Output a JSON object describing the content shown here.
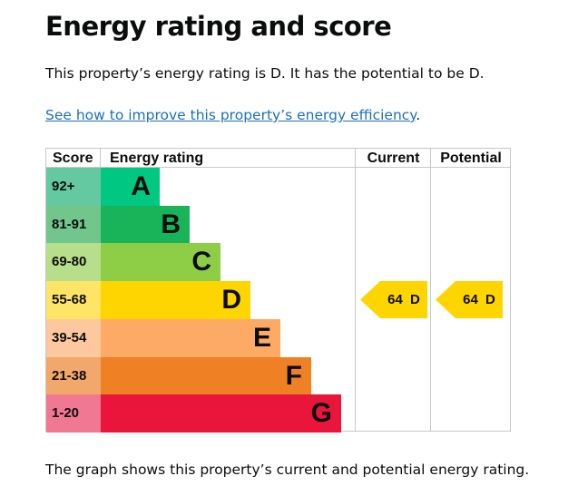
{
  "title": "Energy rating and score",
  "intro": "This property’s energy rating is D. It has the potential to be D.",
  "link": "See how to improve this property’s energy efficiency",
  "link_suffix": ".",
  "footer": "The graph shows this property’s current and potential energy rating.",
  "chart": {
    "headers": {
      "score": "Score",
      "rating": "Energy rating",
      "current": "Current",
      "potential": "Potential"
    },
    "bands": [
      {
        "score": "92+",
        "letter": "A",
        "color": "#00c781",
        "score_color": "#64c8a0"
      },
      {
        "score": "81-91",
        "letter": "B",
        "color": "#19b459",
        "score_color": "#72c68c"
      },
      {
        "score": "69-80",
        "letter": "C",
        "color": "#8dce46",
        "score_color": "#b7de8b"
      },
      {
        "score": "55-68",
        "letter": "D",
        "color": "#ffd500",
        "score_color": "#ffe466"
      },
      {
        "score": "39-54",
        "letter": "E",
        "color": "#fcaa65",
        "score_color": "#fdc89e"
      },
      {
        "score": "21-38",
        "letter": "F",
        "color": "#ef8023",
        "score_color": "#f3a86b"
      },
      {
        "score": "1-20",
        "letter": "G",
        "color": "#e9153b",
        "score_color": "#f07892"
      }
    ],
    "current": {
      "label": "64 D",
      "score": 64,
      "band": "D"
    },
    "potential": {
      "label": "64 D",
      "score": 64,
      "band": "D"
    }
  }
}
